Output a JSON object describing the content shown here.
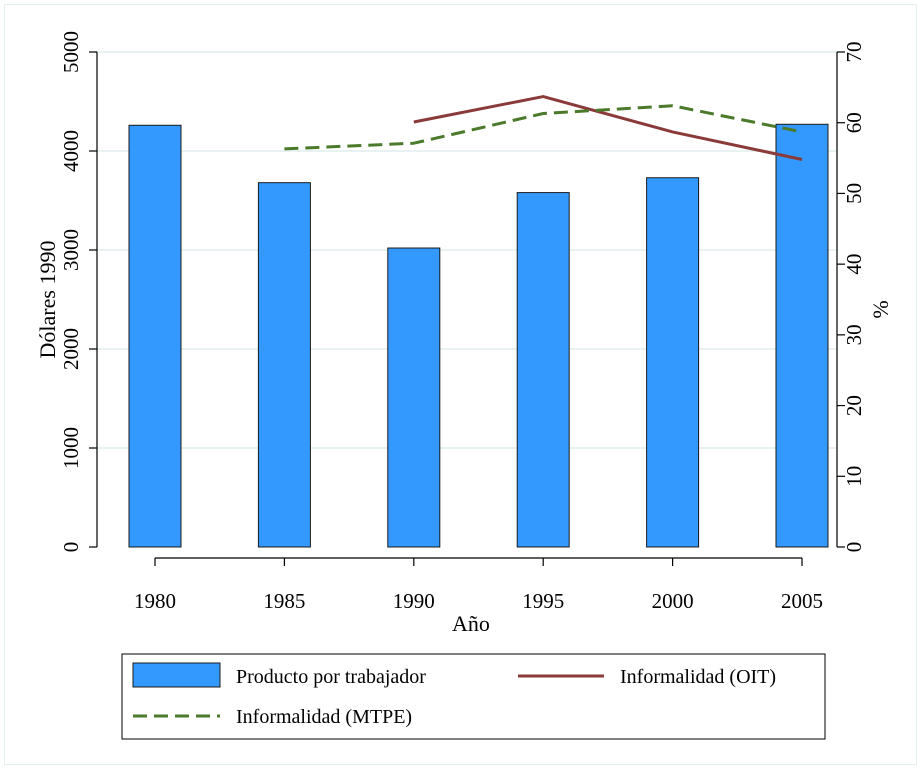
{
  "chart_data": {
    "type": "bar",
    "x": [
      1980,
      1985,
      1990,
      1995,
      2000,
      2005
    ],
    "xlabel": "Año",
    "ylabel_left": "Dólares 1990",
    "ylabel_right": "%",
    "ylim_left": [
      0,
      5000
    ],
    "ylim_right": [
      0,
      70
    ],
    "yticks_left": [
      0,
      1000,
      2000,
      3000,
      4000,
      5000
    ],
    "yticks_right": [
      0,
      10,
      20,
      30,
      40,
      50,
      60,
      70
    ],
    "grid": true,
    "legend_position": "bottom",
    "series": [
      {
        "name": "Producto por trabajador",
        "type": "bar",
        "axis": "left",
        "color": "#3399ff",
        "x": [
          1980,
          1985,
          1990,
          1995,
          2000,
          2005
        ],
        "values": [
          4260,
          3680,
          3020,
          3580,
          3730,
          4270
        ]
      },
      {
        "name": "Informalidad (OIT)",
        "type": "line",
        "axis": "right",
        "color": "#8b3a3a",
        "dash": "solid",
        "x": [
          1990,
          1995,
          2000,
          2005
        ],
        "values": [
          60.1,
          63.7,
          58.7,
          54.8
        ]
      },
      {
        "name": "Informalidad (MTPE)",
        "type": "line",
        "axis": "right",
        "color": "#4a7a2a",
        "dash": "dashed",
        "x": [
          1985,
          1990,
          1995,
          2000,
          2005
        ],
        "values": [
          56.3,
          57.1,
          61.3,
          62.4,
          58.7
        ]
      }
    ]
  }
}
